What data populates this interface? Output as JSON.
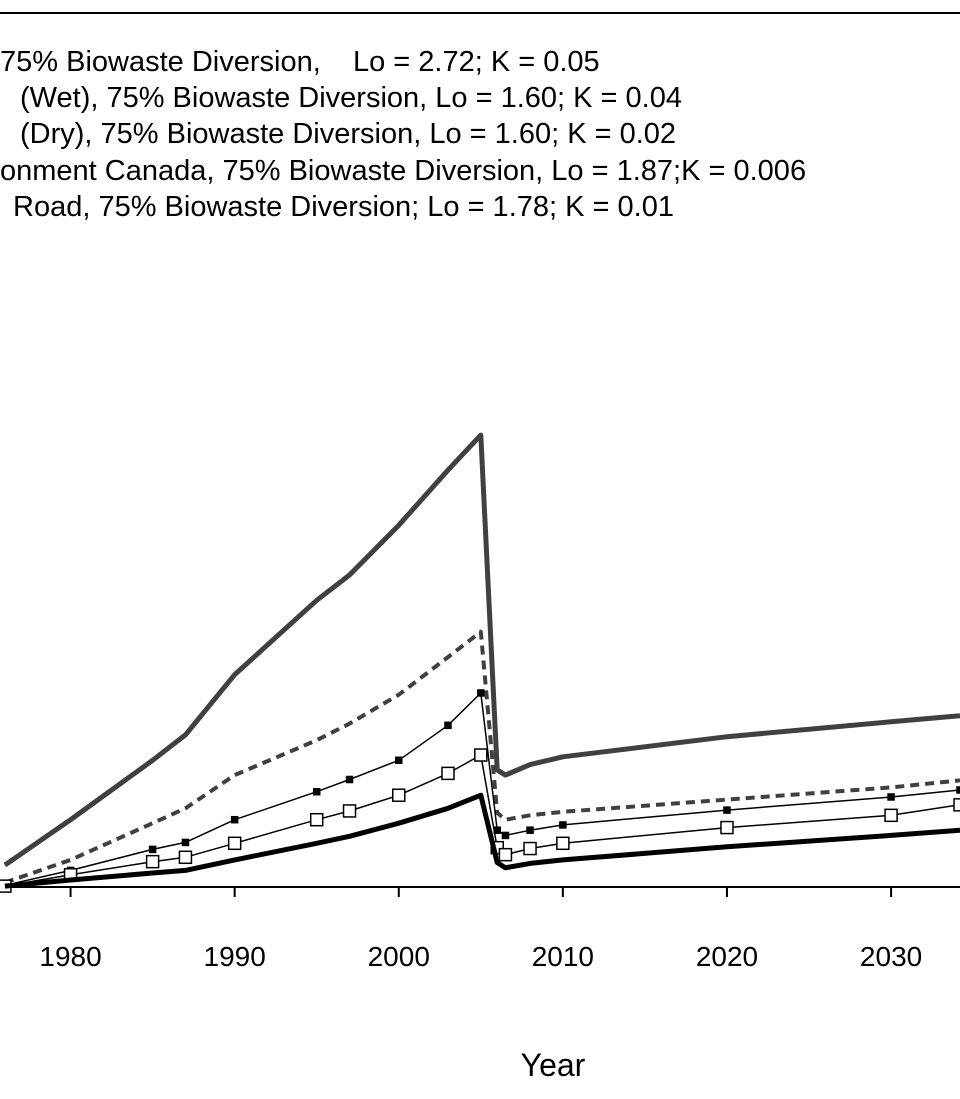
{
  "chart_data": {
    "type": "line",
    "x_label": "Year",
    "x": [
      1976,
      1980,
      1985,
      1987,
      1990,
      1995,
      1997,
      2000,
      2003,
      2005,
      2006,
      2006.5,
      2008,
      2010,
      2020,
      2030,
      2034.2
    ],
    "xlim": [
      1975.7,
      2034.2
    ],
    "xticks": [
      1980,
      1990,
      2000,
      2010,
      2020,
      2030
    ],
    "ylim": [
      0,
      100
    ],
    "series": [
      {
        "name": "75% Biowaste Diversion,    Lo = 2.72; K = 0.05",
        "color": "#404040",
        "style": "thick",
        "values": [
          2.5,
          7.7,
          14.5,
          17.4,
          24.3,
          32.8,
          35.7,
          41.4,
          47.7,
          51.7,
          13.4,
          12.8,
          14.0,
          14.9,
          17.2,
          18.9,
          19.6
        ]
      },
      {
        "name": "(Wet), 75% Biowaste Diversion, Lo = 1.60; K = 0.04",
        "color": "#404040",
        "style": "dashed",
        "values": [
          0.5,
          3.1,
          7.3,
          9.0,
          12.8,
          16.8,
          18.7,
          22.0,
          26.3,
          29.2,
          8.5,
          7.7,
          8.2,
          8.6,
          10.0,
          11.4,
          12.2
        ]
      },
      {
        "name": "(Dry), 75% Biowaste Diversion, Lo = 1.60; K = 0.02",
        "color": "#000000",
        "style": "filled-square",
        "values": [
          0.2,
          1.9,
          4.3,
          5.1,
          7.7,
          10.9,
          12.3,
          14.5,
          18.5,
          22.2,
          6.5,
          5.9,
          6.5,
          7.1,
          8.8,
          10.3,
          11.1
        ]
      },
      {
        "name": "onment Canada, 75% Biowaste Diversion, Lo = 1.87;K = 0.006",
        "color": "#000000",
        "style": "open-square",
        "values": [
          0.1,
          1.4,
          2.9,
          3.4,
          5.0,
          7.7,
          8.7,
          10.5,
          13.0,
          15.1,
          4.5,
          3.7,
          4.4,
          5.0,
          6.8,
          8.2,
          9.4
        ]
      },
      {
        "name": "Road, 75% Biowaste Diversion; Lo = 1.78; K = 0.01",
        "color": "#000000",
        "style": "thick",
        "values": [
          0.1,
          0.8,
          1.6,
          1.9,
          3.1,
          5.0,
          5.8,
          7.3,
          9.0,
          10.5,
          2.8,
          2.2,
          2.7,
          3.1,
          4.6,
          5.9,
          6.5
        ]
      }
    ]
  }
}
